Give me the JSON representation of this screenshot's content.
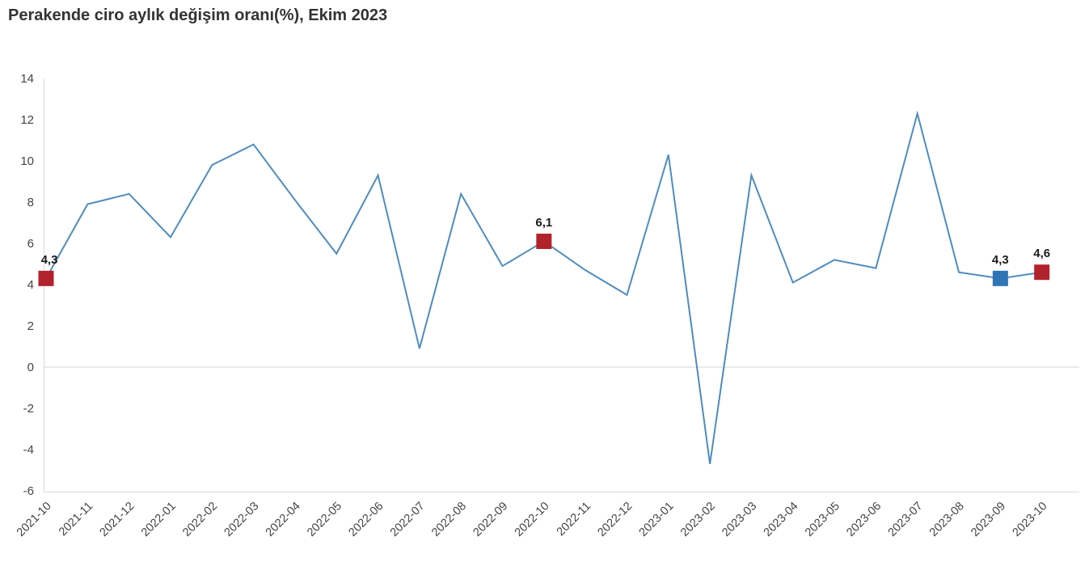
{
  "title": "Perakende ciro aylık değişim oranı(%), Ekim 2023",
  "chart_data": {
    "type": "line",
    "title": "Perakende ciro aylık değişim oranı(%), Ekim 2023",
    "xlabel": "",
    "ylabel": "",
    "categories": [
      "2021-10",
      "2021-11",
      "2021-12",
      "2022-01",
      "2022-02",
      "2022-03",
      "2022-04",
      "2022-05",
      "2022-06",
      "2022-07",
      "2022-08",
      "2022-09",
      "2022-10",
      "2022-11",
      "2022-12",
      "2023-01",
      "2023-02",
      "2023-03",
      "2023-04",
      "2023-05",
      "2023-06",
      "2023-07",
      "2023-08",
      "2023-09",
      "2023-10"
    ],
    "values": [
      4.3,
      7.9,
      8.4,
      6.3,
      9.8,
      10.8,
      8.1,
      5.5,
      9.3,
      0.9,
      8.4,
      4.9,
      6.1,
      4.7,
      3.5,
      10.3,
      -4.7,
      9.3,
      4.1,
      5.2,
      4.8,
      12.3,
      4.6,
      4.3,
      4.6
    ],
    "ylim": [
      -6,
      14
    ],
    "y_tick_step": 2,
    "grid": "zero-line-only",
    "legend_position": "none",
    "line_color": "#4e8cbf",
    "axis_line_color": "#d9d9d9",
    "zero_line_color": "#d6d6d6",
    "highlighted_points": [
      {
        "category": "2021-10",
        "index": 0,
        "label": "4,3",
        "color": "#b1222a"
      },
      {
        "category": "2022-10",
        "index": 12,
        "label": "6,1",
        "color": "#b1222a"
      },
      {
        "category": "2023-09",
        "index": 23,
        "label": "4,3",
        "color": "#2f75b5"
      },
      {
        "category": "2023-10",
        "index": 24,
        "label": "4,6",
        "color": "#b1222a"
      }
    ]
  }
}
